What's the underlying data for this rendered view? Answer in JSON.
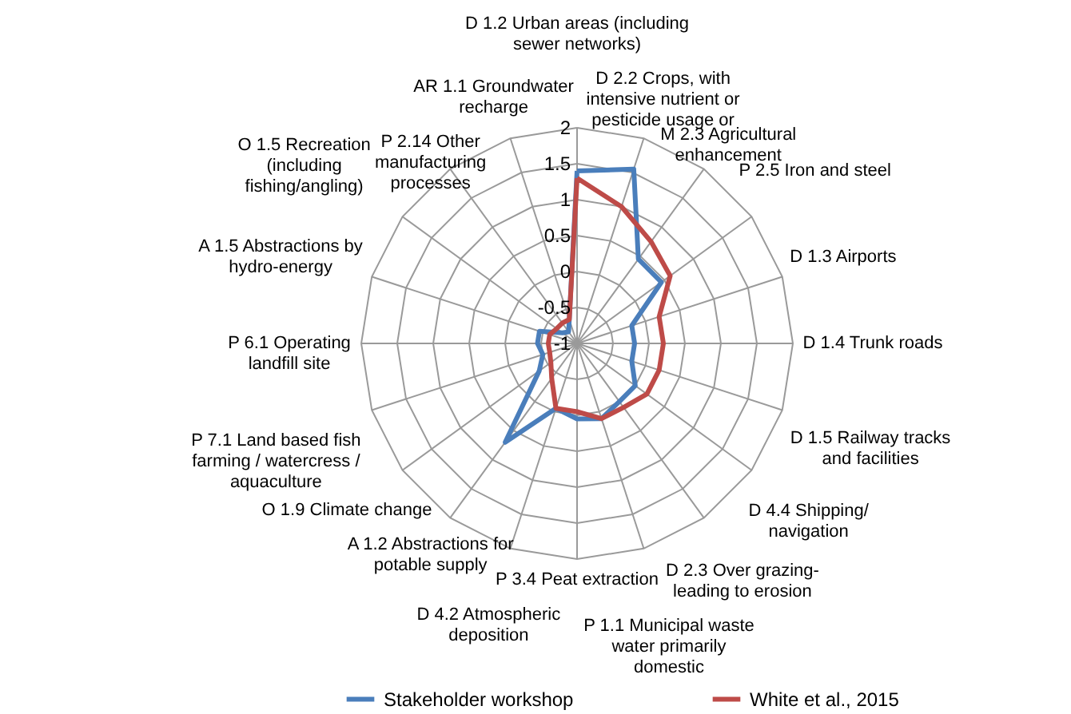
{
  "chart_data": {
    "type": "radar",
    "categories": [
      "D 1.2 Urban areas (including sewer networks)",
      "D 2.2 Crops, with intensive nutrient or pesticide usage or",
      "M 2.3 Agricultural enhancement",
      "P 2.5 Iron and steel",
      "D 1.3 Airports",
      "D 1.4 Trunk roads",
      "D 1.5 Railway tracks and facilities",
      "D 4.4 Shipping/ navigation",
      "D 2.3 Over grazing- leading to erosion",
      "P 1.1 Municipal waste water primarily domestic",
      "P 3.4 Peat extraction",
      "D 4.2 Atmospheric deposition",
      "A 1.2 Abstractions for potable supply",
      "O 1.9 Climate change",
      "P 7.1 Land based fish farming / watercress / aquaculture",
      "P 6.1 Operating landfill site",
      "A 1.5 Abstractions by hydro-energy",
      "O 1.5 Recreation (including fishing/angling)",
      "P 2.14 Other manufacturing processes",
      "AR 1.1 Groundwater recharge"
    ],
    "series": [
      {
        "name": "Stakeholder workshop",
        "color": "#4a7ebb",
        "values": [
          1.4,
          1.55,
          0.45,
          0.45,
          -0.2,
          -0.2,
          -0.2,
          0,
          0,
          0.1,
          0.05,
          -0.05,
          0.7,
          -0.35,
          -0.5,
          -0.45,
          -0.45,
          -0.75,
          -0.8,
          -0.65
        ]
      },
      {
        "name": "White et al., 2015",
        "color": "#be4b48",
        "values": [
          1.3,
          1.0,
          0.75,
          0.6,
          0.2,
          0.2,
          0.2,
          0.2,
          0.1,
          0.1,
          -0.05,
          -0.05,
          -0.4,
          -0.55,
          -0.6,
          -0.6,
          -0.6,
          -0.65,
          -0.65,
          -0.65
        ]
      }
    ],
    "ylim": [
      -1,
      2
    ],
    "yticks": [
      -1,
      -0.5,
      0,
      0.5,
      1,
      1.5,
      2
    ],
    "grid": true,
    "legend": "bottom"
  }
}
